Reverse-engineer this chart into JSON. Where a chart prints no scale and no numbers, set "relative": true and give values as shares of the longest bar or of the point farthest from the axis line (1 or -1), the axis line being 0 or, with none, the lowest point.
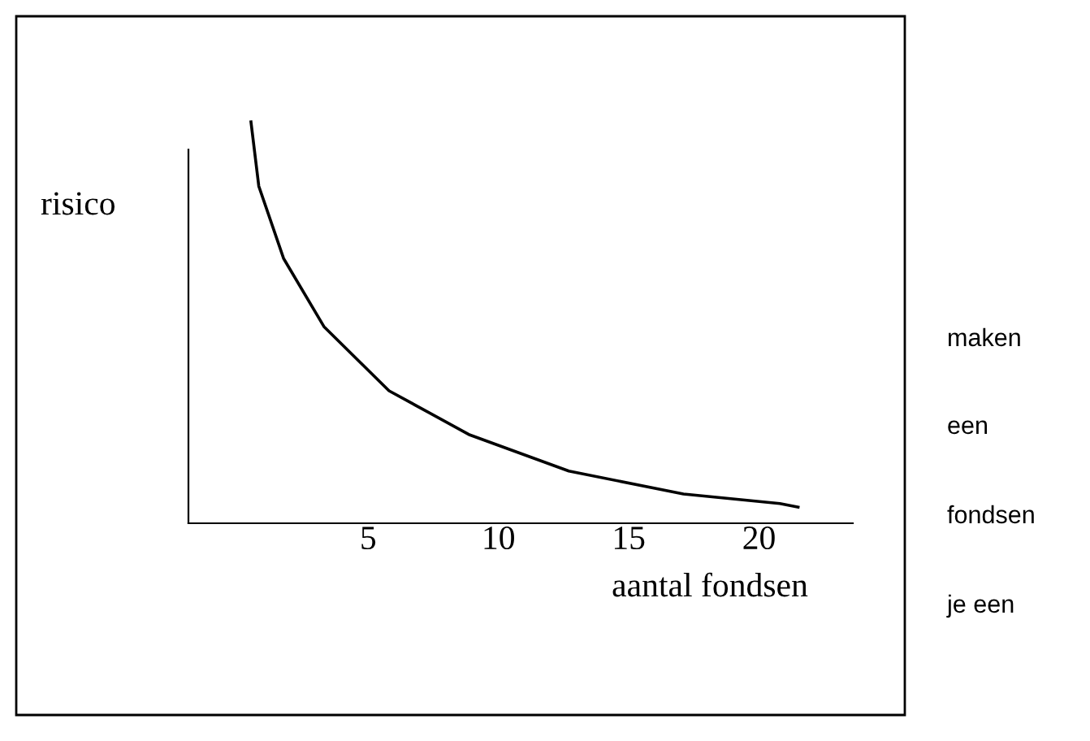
{
  "chart_data": {
    "type": "line",
    "relative": true,
    "ylabel": "risico",
    "xlabel": "aantal fondsen",
    "x": [
      0.5,
      0.8,
      1.75,
      3.3,
      5.8,
      8.9,
      12.7,
      17.1,
      20.8,
      21.5
    ],
    "series": [
      {
        "color": "#000000",
        "values": [
          1,
          0.84,
          0.66,
          0.49,
          0.33,
          0.22,
          0.13,
          0.073,
          0.049,
          0.04
        ]
      }
    ],
    "xlim": [
      -1.9,
      23.6
    ],
    "xticks": [
      5,
      10,
      15,
      20
    ],
    "annotations": [
      "maken",
      "een",
      "fondsen",
      "je een"
    ],
    "grid": false,
    "legend": false,
    "marker": "none",
    "line_style": "solid"
  }
}
